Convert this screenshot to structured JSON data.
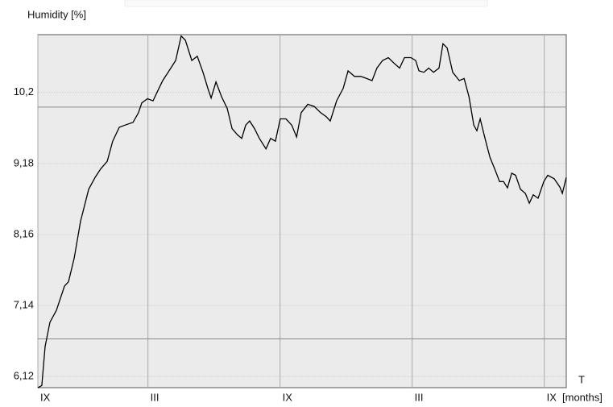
{
  "chart_data": {
    "type": "line",
    "y_label": "Humidity [%]",
    "x_label": "T",
    "x_unit": "[months]",
    "x": [
      0,
      0.18,
      0.33,
      0.55,
      0.84,
      1.21,
      1.39,
      1.65,
      1.94,
      2.31,
      2.6,
      2.85,
      3.15,
      3.4,
      3.7,
      3.95,
      4.32,
      4.57,
      4.72,
      4.98,
      5.23,
      5.41,
      5.67,
      5.96,
      6.26,
      6.51,
      6.7,
      6.99,
      7.24,
      7.5,
      7.72,
      7.87,
      8.09,
      8.34,
      8.6,
      8.82,
      9.07,
      9.26,
      9.44,
      9.62,
      9.84,
      10.06,
      10.36,
      10.57,
      10.79,
      11.01,
      11.27,
      11.53,
      11.75,
      11.96,
      12.26,
      12.55,
      12.84,
      13.1,
      13.28,
      13.57,
      13.87,
      14.09,
      14.38,
      14.67,
      14.93,
      15.18,
      15.4,
      15.66,
      15.92,
      16.21,
      16.43,
      16.65,
      16.94,
      17.16,
      17.31,
      17.53,
      17.75,
      17.97,
      18.22,
      18.4,
      18.59,
      18.84,
      19.14,
      19.36,
      19.58,
      19.8,
      19.94,
      20.09,
      20.31,
      20.53,
      20.75,
      20.97,
      21.15,
      21.33,
      21.52,
      21.7,
      21.92,
      22.14,
      22.32,
      22.5,
      22.72,
      22.98,
      23.16,
      23.45,
      23.71,
      23.82,
      24
    ],
    "series": [
      {
        "name": "Humidity",
        "color": "#000000",
        "values": [
          5.96,
          5.99,
          6.55,
          6.9,
          7.07,
          7.42,
          7.48,
          7.82,
          8.35,
          8.81,
          8.98,
          9.1,
          9.21,
          9.5,
          9.7,
          9.73,
          9.77,
          9.91,
          10.05,
          10.11,
          10.08,
          10.2,
          10.37,
          10.51,
          10.66,
          11.01,
          10.95,
          10.66,
          10.72,
          10.49,
          10.26,
          10.12,
          10.35,
          10.14,
          9.97,
          9.68,
          9.59,
          9.54,
          9.73,
          9.79,
          9.68,
          9.54,
          9.39,
          9.54,
          9.5,
          9.82,
          9.82,
          9.73,
          9.56,
          9.91,
          10.03,
          10.0,
          9.91,
          9.85,
          9.79,
          10.08,
          10.26,
          10.51,
          10.43,
          10.43,
          10.4,
          10.37,
          10.55,
          10.66,
          10.7,
          10.61,
          10.55,
          10.7,
          10.7,
          10.66,
          10.51,
          10.49,
          10.55,
          10.49,
          10.55,
          10.9,
          10.84,
          10.49,
          10.37,
          10.4,
          10.14,
          9.73,
          9.65,
          9.82,
          9.54,
          9.27,
          9.1,
          8.92,
          8.92,
          8.83,
          9.04,
          9.01,
          8.81,
          8.75,
          8.61,
          8.73,
          8.68,
          8.92,
          9.01,
          8.96,
          8.84,
          8.75,
          8.98
        ]
      }
    ],
    "xlim": [
      0,
      24
    ],
    "ylim": [
      5.96,
      11.03
    ],
    "xticks": [
      {
        "value": 0,
        "label": "IX"
      },
      {
        "value": 5,
        "label": "III"
      },
      {
        "value": 11,
        "label": "IX"
      },
      {
        "value": 17,
        "label": "III"
      },
      {
        "value": 23,
        "label": "IX"
      }
    ],
    "yticks": [
      {
        "value": 6.12,
        "label": "6,12"
      },
      {
        "value": 7.14,
        "label": "7,14"
      },
      {
        "value": 8.16,
        "label": "8,16"
      },
      {
        "value": 9.18,
        "label": "9,18"
      },
      {
        "value": 10.2,
        "label": "10,2"
      }
    ],
    "hlines": [
      9.99,
      6.66
    ],
    "grid": true
  }
}
